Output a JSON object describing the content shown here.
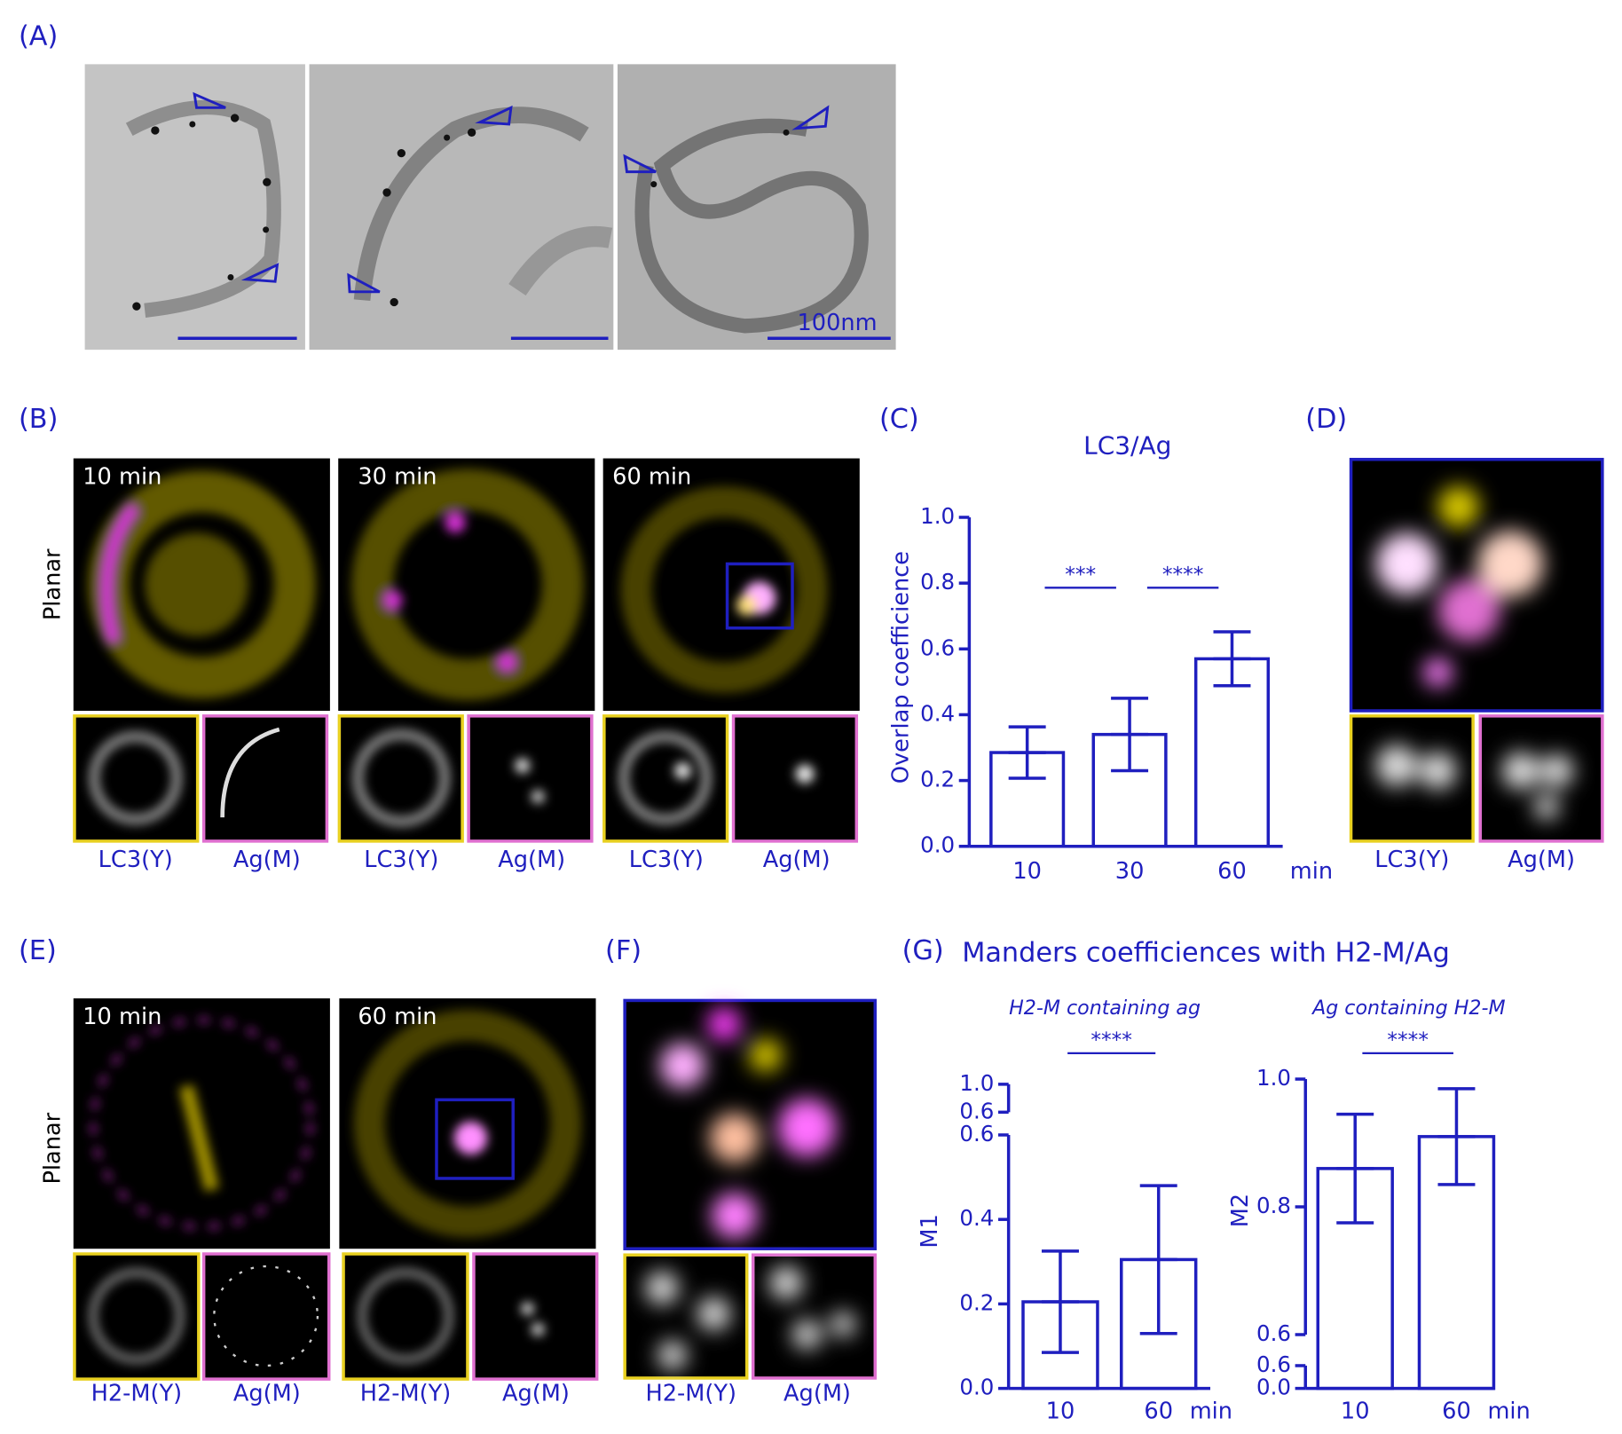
{
  "panel_a": {
    "label": "(A)",
    "scale_bar": "100nm"
  },
  "panel_b": {
    "label": "(B)",
    "row_label": "Planar",
    "times": [
      "10 min",
      "30 min",
      "60 min"
    ],
    "channels": [
      "LC3(Y)",
      "Ag(M)"
    ]
  },
  "panel_d": {
    "label": "(D)",
    "channels": [
      "LC3(Y)",
      "Ag(M)"
    ]
  },
  "panel_e": {
    "label": "(E)",
    "row_label": "Planar",
    "times": [
      "10 min",
      "60 min"
    ],
    "channels": [
      "H2-M(Y)",
      "Ag(M)"
    ]
  },
  "panel_f": {
    "label": "(F)",
    "channels": [
      "H2-M(Y)",
      "Ag(M)"
    ]
  },
  "panel_g": {
    "label": "(G)",
    "title": "Manders coefficiences with H2-M/Ag"
  },
  "chart_data": [
    {
      "type": "bar",
      "panel_label": "(C)",
      "title": "LC3/Ag",
      "y_label": "Overlap coefficience",
      "x_unit": "min",
      "categories": [
        "10",
        "30",
        "60"
      ],
      "values": [
        0.285,
        0.34,
        0.57
      ],
      "errors": [
        0.078,
        0.11,
        0.082
      ],
      "color": "#1f1fbf",
      "ylim": [
        0,
        1
      ],
      "yticks": [
        {
          "value": 0,
          "label": "0.0"
        },
        0.2,
        0.4,
        0.6,
        0.8,
        {
          "value": 1,
          "label": "1.0"
        }
      ],
      "significance": [
        {
          "pair": [
            0,
            1
          ],
          "label": "***"
        },
        {
          "pair": [
            1,
            2
          ],
          "label": "****"
        }
      ]
    },
    {
      "type": "bar",
      "subtitle": "H2-M containing ag",
      "y_label": "M1",
      "x_unit": "min",
      "categories": [
        "10",
        "60"
      ],
      "values": [
        0.205,
        0.305
      ],
      "errors": [
        0.12,
        0.175
      ],
      "color": "#1f1fbf",
      "segments": [
        {
          "ylim": [
            0,
            0.6
          ],
          "yticks": [
            {
              "value": 0,
              "label": "0.0"
            },
            0.2,
            0.4,
            0.6
          ]
        },
        {
          "ylim": [
            0.6,
            1
          ],
          "yticks": [
            0.6,
            {
              "value": 1,
              "label": "1.0"
            }
          ]
        }
      ],
      "significance": [
        {
          "pair": [
            0,
            1
          ],
          "label": "****"
        }
      ]
    },
    {
      "type": "bar",
      "subtitle": "Ag containing H2-M",
      "y_label": "M2",
      "x_unit": "min",
      "categories": [
        "10",
        "60"
      ],
      "values": [
        0.86,
        0.91
      ],
      "errors": [
        0.085,
        0.075
      ],
      "color": "#1f1fbf",
      "segments": [
        {
          "ylim": [
            0,
            0.6
          ],
          "yticks": [
            {
              "value": 0,
              "label": "0.0"
            },
            0.6
          ]
        },
        {
          "ylim": [
            0.6,
            1
          ],
          "yticks": [
            0.6,
            0.8,
            {
              "value": 1,
              "label": "1.0"
            }
          ]
        }
      ],
      "significance": [
        {
          "pair": [
            0,
            1
          ],
          "label": "****"
        }
      ]
    }
  ]
}
